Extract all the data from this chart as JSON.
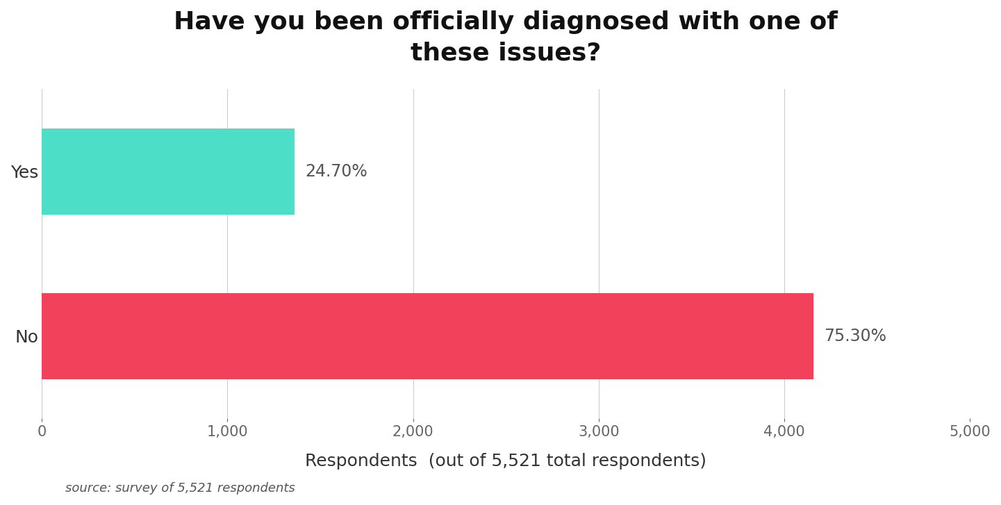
{
  "title_line1": "Have you been officially diagnosed with one of",
  "title_line2": "these issues?",
  "categories": [
    "Yes",
    "No"
  ],
  "values": [
    1362.987,
    4158.063
  ],
  "percentages": [
    "24.70%",
    "75.30%"
  ],
  "bar_colors": [
    "#4DDEC8",
    "#F2415A"
  ],
  "xlim": [
    0,
    5000
  ],
  "xticks": [
    0,
    1000,
    2000,
    3000,
    4000,
    5000
  ],
  "xlabel": "Respondents  (out of 5,521 total respondents)",
  "source_text": "source: survey of 5,521 respondents",
  "background_color": "#ffffff",
  "grid_color": "#cccccc",
  "title_fontsize": 26,
  "label_fontsize": 18,
  "tick_fontsize": 15,
  "pct_fontsize": 17,
  "source_fontsize": 13,
  "bar_height": 0.52
}
